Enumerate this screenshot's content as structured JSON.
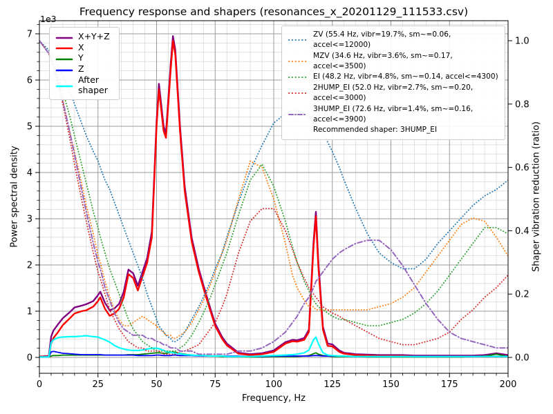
{
  "chart": {
    "title": "Frequency response and shapers (resonances_x_20201129_111533.csv)",
    "y_axis_multiplier": "1e3"
  },
  "chart_data": {
    "type": "line",
    "title": "Frequency response and shapers (resonances_x_20201129_111533.csv)",
    "xlabel": "Frequency, Hz",
    "ylabel_left": "Power spectral density",
    "ylabel_right": "Shaper vibration reduction (ratio)",
    "x_axis": {
      "range": [
        0,
        200
      ],
      "major_ticks": [
        0,
        25,
        50,
        75,
        100,
        125,
        150,
        175,
        200
      ],
      "minor_tick_step": 5
    },
    "left_axis": {
      "multiplier": "1e3",
      "range_1e3": [
        -0.35,
        7.3
      ],
      "major_ticks": [
        0,
        1,
        2,
        3,
        4,
        5,
        6,
        7
      ],
      "minor_tick_step": 0.2
    },
    "right_axis": {
      "range": [
        -0.05,
        1.06
      ],
      "major_tick_labels": [
        "0.0",
        "0.2",
        "0.4",
        "0.6",
        "0.8",
        "1.0"
      ],
      "major_tick_values": [
        0,
        0.2,
        0.4,
        0.6,
        0.8,
        1.0
      ]
    },
    "grid": {
      "major_color": "#9a9a9a",
      "minor_color": "#d9d9d9",
      "on": true
    },
    "legend_left_position": "upper left",
    "legend_right_position": "upper right",
    "x": [
      0,
      4,
      5,
      6,
      8,
      10,
      13,
      15,
      18,
      20,
      23,
      25,
      26,
      28,
      30,
      32,
      34,
      36,
      38,
      40,
      42,
      44,
      46,
      48,
      50,
      51,
      53,
      54,
      56,
      57,
      58,
      60,
      62,
      65,
      68,
      70,
      73,
      75,
      78,
      80,
      85,
      90,
      95,
      100,
      105,
      108,
      110,
      113,
      115,
      117,
      118,
      119,
      121,
      123,
      125,
      128,
      130,
      135,
      140,
      145,
      150,
      155,
      160,
      165,
      170,
      175,
      180,
      185,
      190,
      195,
      200
    ],
    "psd_series": [
      {
        "label": "X+Y+Z",
        "color": "#800080",
        "style": "solid",
        "axis": "left",
        "width": 2.4,
        "values": [
          0.02,
          0.03,
          0.45,
          0.58,
          0.72,
          0.85,
          0.98,
          1.08,
          1.12,
          1.15,
          1.22,
          1.35,
          1.42,
          1.18,
          1.02,
          1.06,
          1.16,
          1.42,
          1.9,
          1.82,
          1.55,
          1.85,
          2.15,
          2.72,
          5.1,
          5.92,
          5.0,
          4.85,
          6.32,
          6.95,
          6.65,
          5.0,
          3.7,
          2.58,
          1.92,
          1.56,
          1.05,
          0.73,
          0.44,
          0.3,
          0.1,
          0.07,
          0.09,
          0.15,
          0.33,
          0.38,
          0.37,
          0.42,
          0.6,
          2.5,
          3.15,
          2.1,
          0.66,
          0.3,
          0.28,
          0.15,
          0.1,
          0.07,
          0.06,
          0.05,
          0.05,
          0.05,
          0.04,
          0.04,
          0.04,
          0.04,
          0.04,
          0.04,
          0.05,
          0.09,
          0.05
        ]
      },
      {
        "label": "X",
        "color": "#ff0000",
        "style": "solid",
        "axis": "left",
        "width": 2.4,
        "values": [
          0.02,
          0.02,
          0.3,
          0.42,
          0.55,
          0.7,
          0.85,
          0.95,
          1.0,
          1.02,
          1.1,
          1.22,
          1.3,
          1.05,
          0.9,
          0.95,
          1.05,
          1.3,
          1.8,
          1.72,
          1.45,
          1.75,
          2.05,
          2.6,
          5.0,
          5.8,
          4.9,
          4.75,
          6.2,
          6.85,
          6.55,
          4.9,
          3.6,
          2.5,
          1.85,
          1.5,
          1.0,
          0.68,
          0.4,
          0.26,
          0.08,
          0.05,
          0.07,
          0.12,
          0.3,
          0.35,
          0.34,
          0.38,
          0.55,
          2.4,
          3.05,
          2.0,
          0.6,
          0.25,
          0.24,
          0.12,
          0.08,
          0.05,
          0.04,
          0.03,
          0.03,
          0.03,
          0.02,
          0.02,
          0.02,
          0.02,
          0.02,
          0.02,
          0.02,
          0.02,
          0.02
        ]
      },
      {
        "label": "Y",
        "color": "#008000",
        "style": "solid",
        "axis": "left",
        "width": 1.8,
        "values": [
          0.01,
          0.01,
          0.03,
          0.04,
          0.04,
          0.05,
          0.05,
          0.05,
          0.05,
          0.05,
          0.05,
          0.05,
          0.05,
          0.05,
          0.05,
          0.05,
          0.05,
          0.05,
          0.06,
          0.06,
          0.06,
          0.07,
          0.08,
          0.09,
          0.1,
          0.1,
          0.09,
          0.09,
          0.11,
          0.12,
          0.11,
          0.09,
          0.07,
          0.05,
          0.04,
          0.04,
          0.03,
          0.03,
          0.02,
          0.02,
          0.02,
          0.01,
          0.01,
          0.02,
          0.02,
          0.02,
          0.02,
          0.03,
          0.04,
          0.08,
          0.1,
          0.07,
          0.04,
          0.03,
          0.02,
          0.02,
          0.02,
          0.02,
          0.01,
          0.01,
          0.01,
          0.01,
          0.01,
          0.01,
          0.01,
          0.01,
          0.01,
          0.02,
          0.03,
          0.07,
          0.02
        ]
      },
      {
        "label": "Z",
        "color": "#0000ff",
        "style": "solid",
        "axis": "left",
        "width": 1.8,
        "values": [
          0.01,
          0.01,
          0.12,
          0.13,
          0.11,
          0.09,
          0.08,
          0.07,
          0.06,
          0.06,
          0.06,
          0.06,
          0.06,
          0.05,
          0.05,
          0.05,
          0.05,
          0.05,
          0.05,
          0.05,
          0.04,
          0.04,
          0.04,
          0.04,
          0.05,
          0.05,
          0.04,
          0.04,
          0.04,
          0.05,
          0.05,
          0.04,
          0.04,
          0.04,
          0.03,
          0.03,
          0.03,
          0.03,
          0.03,
          0.03,
          0.03,
          0.02,
          0.02,
          0.03,
          0.03,
          0.03,
          0.03,
          0.03,
          0.03,
          0.04,
          0.04,
          0.04,
          0.03,
          0.03,
          0.03,
          0.03,
          0.03,
          0.02,
          0.02,
          0.02,
          0.02,
          0.02,
          0.02,
          0.02,
          0.02,
          0.02,
          0.02,
          0.02,
          0.02,
          0.02,
          0.02
        ]
      },
      {
        "label": "After shaper",
        "color": "#00ffff",
        "style": "solid",
        "axis": "left",
        "width": 2.2,
        "values": [
          0.01,
          0.01,
          0.32,
          0.38,
          0.43,
          0.44,
          0.45,
          0.45,
          0.46,
          0.47,
          0.45,
          0.44,
          0.42,
          0.38,
          0.33,
          0.26,
          0.21,
          0.18,
          0.16,
          0.15,
          0.15,
          0.16,
          0.18,
          0.2,
          0.2,
          0.19,
          0.15,
          0.13,
          0.11,
          0.1,
          0.09,
          0.08,
          0.06,
          0.05,
          0.04,
          0.04,
          0.03,
          0.03,
          0.03,
          0.02,
          0.02,
          0.02,
          0.03,
          0.04,
          0.05,
          0.06,
          0.07,
          0.1,
          0.16,
          0.38,
          0.44,
          0.3,
          0.1,
          0.05,
          0.04,
          0.03,
          0.03,
          0.02,
          0.02,
          0.02,
          0.02,
          0.02,
          0.02,
          0.02,
          0.02,
          0.02,
          0.02,
          0.02,
          0.02,
          0.02,
          0.02
        ]
      }
    ],
    "shaper_series": [
      {
        "label": "ZV (55.4 Hz, vibr=19.7%, sm~=0.06, accel<=12000)",
        "color": "#1f77b4",
        "style": "dotted",
        "axis": "right",
        "width": 1.9,
        "values": [
          1.0,
          0.97,
          0.96,
          0.95,
          0.92,
          0.89,
          0.84,
          0.8,
          0.74,
          0.7,
          0.65,
          0.62,
          0.6,
          0.56,
          0.53,
          0.49,
          0.45,
          0.41,
          0.37,
          0.33,
          0.29,
          0.25,
          0.2,
          0.16,
          0.12,
          0.1,
          0.08,
          0.07,
          0.06,
          0.05,
          0.05,
          0.06,
          0.08,
          0.12,
          0.16,
          0.19,
          0.24,
          0.28,
          0.33,
          0.38,
          0.49,
          0.59,
          0.67,
          0.74,
          0.77,
          0.78,
          0.78,
          0.77,
          0.76,
          0.74,
          0.74,
          0.73,
          0.71,
          0.68,
          0.65,
          0.6,
          0.56,
          0.47,
          0.39,
          0.33,
          0.3,
          0.28,
          0.28,
          0.31,
          0.36,
          0.4,
          0.44,
          0.48,
          0.51,
          0.53,
          0.56
        ]
      },
      {
        "label": "MZV (34.6 Hz, vibr=3.6%, sm~=0.17, accel<=3500)",
        "color": "#ff7f0e",
        "style": "dotted",
        "axis": "right",
        "width": 1.9,
        "values": [
          1.0,
          0.96,
          0.94,
          0.92,
          0.87,
          0.81,
          0.71,
          0.65,
          0.55,
          0.48,
          0.39,
          0.32,
          0.3,
          0.24,
          0.19,
          0.15,
          0.12,
          0.1,
          0.1,
          0.11,
          0.12,
          0.13,
          0.12,
          0.11,
          0.1,
          0.09,
          0.08,
          0.07,
          0.07,
          0.06,
          0.06,
          0.07,
          0.08,
          0.11,
          0.15,
          0.18,
          0.23,
          0.27,
          0.33,
          0.37,
          0.5,
          0.62,
          0.6,
          0.5,
          0.36,
          0.26,
          0.22,
          0.18,
          0.16,
          0.16,
          0.15,
          0.15,
          0.15,
          0.15,
          0.15,
          0.15,
          0.15,
          0.15,
          0.15,
          0.16,
          0.17,
          0.19,
          0.22,
          0.27,
          0.32,
          0.37,
          0.42,
          0.44,
          0.43,
          0.38,
          0.32
        ]
      },
      {
        "label": "EI (48.2 Hz, vibr=4.8%, sm~=0.14, accel<=4300)",
        "color": "#2ca02c",
        "style": "dotted",
        "axis": "right",
        "width": 1.9,
        "values": [
          1.0,
          0.96,
          0.95,
          0.93,
          0.89,
          0.84,
          0.76,
          0.7,
          0.61,
          0.55,
          0.46,
          0.41,
          0.38,
          0.33,
          0.28,
          0.24,
          0.2,
          0.16,
          0.12,
          0.09,
          0.07,
          0.05,
          0.04,
          0.03,
          0.02,
          0.02,
          0.02,
          0.02,
          0.02,
          0.02,
          0.02,
          0.03,
          0.04,
          0.07,
          0.11,
          0.14,
          0.19,
          0.23,
          0.29,
          0.33,
          0.45,
          0.56,
          0.61,
          0.54,
          0.43,
          0.35,
          0.3,
          0.24,
          0.21,
          0.18,
          0.17,
          0.16,
          0.15,
          0.14,
          0.13,
          0.12,
          0.12,
          0.11,
          0.1,
          0.1,
          0.11,
          0.12,
          0.14,
          0.17,
          0.21,
          0.26,
          0.31,
          0.36,
          0.41,
          0.41,
          0.39
        ]
      },
      {
        "label": "2HUMP_EI (52.0 Hz, vibr=2.7%, sm~=0.20, accel<=3000)",
        "color": "#d62728",
        "style": "dotted",
        "axis": "right",
        "width": 1.9,
        "values": [
          1.0,
          0.96,
          0.94,
          0.92,
          0.86,
          0.8,
          0.69,
          0.61,
          0.5,
          0.43,
          0.33,
          0.27,
          0.25,
          0.2,
          0.15,
          0.12,
          0.09,
          0.07,
          0.05,
          0.04,
          0.03,
          0.03,
          0.02,
          0.02,
          0.02,
          0.02,
          0.01,
          0.01,
          0.01,
          0.01,
          0.01,
          0.02,
          0.02,
          0.03,
          0.04,
          0.06,
          0.09,
          0.11,
          0.16,
          0.2,
          0.33,
          0.43,
          0.47,
          0.47,
          0.4,
          0.34,
          0.3,
          0.25,
          0.22,
          0.2,
          0.19,
          0.18,
          0.16,
          0.15,
          0.14,
          0.13,
          0.12,
          0.1,
          0.08,
          0.06,
          0.05,
          0.04,
          0.04,
          0.05,
          0.06,
          0.08,
          0.12,
          0.15,
          0.19,
          0.22,
          0.26
        ]
      },
      {
        "label": "3HUMP_EI (72.6 Hz, vibr=1.4%, sm~=0.16, accel<=3900)",
        "color": "#9467bd",
        "style": "dashdot",
        "axis": "right",
        "width": 2.0,
        "values": [
          1.0,
          0.96,
          0.94,
          0.92,
          0.87,
          0.81,
          0.71,
          0.64,
          0.53,
          0.46,
          0.36,
          0.3,
          0.28,
          0.22,
          0.18,
          0.14,
          0.11,
          0.09,
          0.08,
          0.07,
          0.07,
          0.07,
          0.06,
          0.06,
          0.05,
          0.05,
          0.04,
          0.04,
          0.03,
          0.03,
          0.03,
          0.02,
          0.02,
          0.02,
          0.01,
          0.01,
          0.01,
          0.01,
          0.01,
          0.01,
          0.02,
          0.02,
          0.03,
          0.05,
          0.08,
          0.11,
          0.13,
          0.17,
          0.19,
          0.22,
          0.24,
          0.25,
          0.27,
          0.29,
          0.31,
          0.33,
          0.34,
          0.36,
          0.37,
          0.37,
          0.34,
          0.29,
          0.23,
          0.17,
          0.12,
          0.08,
          0.06,
          0.05,
          0.04,
          0.03,
          0.03
        ]
      }
    ],
    "recommendation": "Recommended shaper: 3HUMP_EI"
  }
}
